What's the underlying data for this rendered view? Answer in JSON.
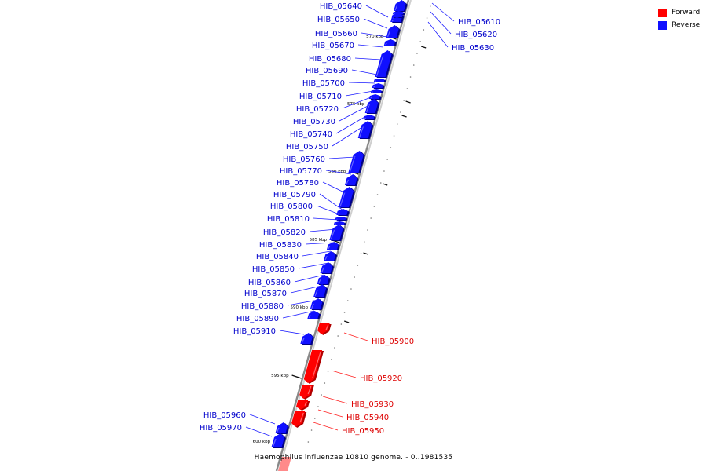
{
  "caption": "Haemophilus influenzae 10810 genome. - 0..1981535",
  "legend": [
    {
      "label": "Forward",
      "color": "#ff0000"
    },
    {
      "label": "Reverse",
      "color": "#1010ff"
    }
  ],
  "colors": {
    "forward": "#ff0000",
    "forward_dark": "#b00000",
    "forward_light": "#ff9a9a",
    "reverse": "#1010ff",
    "reverse_dark": "#00008a",
    "reverse_light": "#8a8aff",
    "axis": "#888888"
  },
  "ticks": [
    "570 kbp",
    "575 kbp",
    "580 kbp",
    "585 kbp",
    "590 kbp",
    "595 kbp",
    "600 kbp"
  ],
  "genes": [
    {
      "id": "HIB_05610",
      "strand": "reverse"
    },
    {
      "id": "HIB_05620",
      "strand": "reverse"
    },
    {
      "id": "HIB_05630",
      "strand": "reverse"
    },
    {
      "id": "HIB_05640",
      "strand": "reverse"
    },
    {
      "id": "HIB_05650",
      "strand": "reverse"
    },
    {
      "id": "HIB_05660",
      "strand": "reverse"
    },
    {
      "id": "HIB_05670",
      "strand": "reverse"
    },
    {
      "id": "HIB_05680",
      "strand": "reverse"
    },
    {
      "id": "HIB_05690",
      "strand": "reverse"
    },
    {
      "id": "HIB_05700",
      "strand": "reverse"
    },
    {
      "id": "HIB_05710",
      "strand": "reverse"
    },
    {
      "id": "HIB_05720",
      "strand": "reverse"
    },
    {
      "id": "HIB_05730",
      "strand": "reverse"
    },
    {
      "id": "HIB_05740",
      "strand": "reverse"
    },
    {
      "id": "HIB_05750",
      "strand": "reverse"
    },
    {
      "id": "HIB_05760",
      "strand": "reverse"
    },
    {
      "id": "HIB_05770",
      "strand": "reverse"
    },
    {
      "id": "HIB_05780",
      "strand": "reverse"
    },
    {
      "id": "HIB_05790",
      "strand": "reverse"
    },
    {
      "id": "HIB_05800",
      "strand": "reverse"
    },
    {
      "id": "HIB_05810",
      "strand": "reverse"
    },
    {
      "id": "HIB_05820",
      "strand": "reverse"
    },
    {
      "id": "HIB_05830",
      "strand": "reverse"
    },
    {
      "id": "HIB_05840",
      "strand": "reverse"
    },
    {
      "id": "HIB_05850",
      "strand": "reverse"
    },
    {
      "id": "HIB_05860",
      "strand": "reverse"
    },
    {
      "id": "HIB_05870",
      "strand": "reverse"
    },
    {
      "id": "HIB_05880",
      "strand": "reverse"
    },
    {
      "id": "HIB_05890",
      "strand": "reverse"
    },
    {
      "id": "HIB_05910",
      "strand": "reverse"
    },
    {
      "id": "HIB_05900",
      "strand": "forward"
    },
    {
      "id": "HIB_05920",
      "strand": "forward"
    },
    {
      "id": "HIB_05930",
      "strand": "forward"
    },
    {
      "id": "HIB_05940",
      "strand": "forward"
    },
    {
      "id": "HIB_05950",
      "strand": "forward"
    },
    {
      "id": "HIB_05960",
      "strand": "reverse"
    },
    {
      "id": "HIB_05970",
      "strand": "reverse"
    }
  ]
}
